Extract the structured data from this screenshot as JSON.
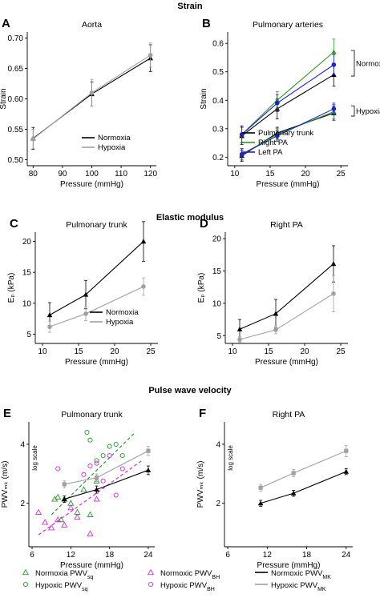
{
  "sections": {
    "strain": "Strain",
    "elastic": "Elastic modulus",
    "pwv": "Pulse wave velocity"
  },
  "colors": {
    "normoxia": "#000000",
    "hypoxia": "#a0a0a0",
    "right_pa": "#2a9a2a",
    "left_pa": "#2020d0",
    "magenta": "#d030d0",
    "green": "#2a9a2a"
  },
  "chart_data": [
    {
      "id": "A",
      "type": "line",
      "letter": "A",
      "title": "Aorta",
      "xlabel": "Pressure (mmHg)",
      "ylabel": "Strain",
      "xlim": [
        78,
        122
      ],
      "ylim": [
        0.49,
        0.71
      ],
      "xticks": [
        80,
        90,
        100,
        110,
        120
      ],
      "yticks": [
        0.5,
        0.55,
        0.6,
        0.65,
        0.7
      ],
      "yticklabels": [
        "0.50",
        "0.55",
        "0.60",
        "0.65",
        "0.70"
      ],
      "legend": [
        "Normoxia",
        "Hypoxia"
      ],
      "series": [
        {
          "name": "Normoxia",
          "color": "#000000",
          "marker": "triangle",
          "x": [
            80,
            100,
            120
          ],
          "y": [
            0.535,
            0.608,
            0.667
          ],
          "err": [
            0.018,
            0.02,
            0.022
          ]
        },
        {
          "name": "Hypoxia",
          "color": "#a0a0a0",
          "marker": "circle",
          "x": [
            80,
            100,
            120
          ],
          "y": [
            0.534,
            0.61,
            0.672
          ],
          "err": [
            0.016,
            0.022,
            0.02
          ]
        }
      ]
    },
    {
      "id": "B",
      "type": "line",
      "letter": "B",
      "title": "Pulmonary arteries",
      "xlabel": "Pressure (mmHg)",
      "ylabel": "Strain",
      "xlim": [
        9,
        26
      ],
      "ylim": [
        0.17,
        0.64
      ],
      "xticks": [
        10,
        15,
        20,
        25
      ],
      "yticks": [
        0.2,
        0.3,
        0.4,
        0.5,
        0.6
      ],
      "yticklabels": [
        "0.2",
        "0.3",
        "0.4",
        "0.5",
        "0.6"
      ],
      "legend": [
        "Pulmonary trunk",
        "Right PA",
        "Left PA"
      ],
      "annotations": [
        "Normoxia",
        "Hypoxia"
      ],
      "series": [
        {
          "name": "Pulmonary trunk",
          "color": "#000000",
          "marker": "triangle",
          "x": [
            11,
            16,
            24
          ],
          "y": [
            0.275,
            0.37,
            0.49
          ],
          "err": [
            0.03,
            0.035,
            0.04
          ]
        },
        {
          "name": "Right PA",
          "color": "#2a9a2a",
          "marker": "triangle",
          "x": [
            11,
            16,
            24
          ],
          "y": [
            0.28,
            0.4,
            0.57
          ],
          "err": [
            0.03,
            0.03,
            0.045
          ]
        },
        {
          "name": "Left PA",
          "color": "#2020d0",
          "marker": "circle",
          "x": [
            11,
            16,
            24
          ],
          "y": [
            0.28,
            0.39,
            0.525
          ],
          "err": [
            0.03,
            0.03,
            0.035
          ]
        },
        {
          "name": "Pulmonary trunk hypoxia",
          "color": "#000000",
          "marker": "triangle",
          "x": [
            11,
            16,
            24
          ],
          "y": [
            0.205,
            0.285,
            0.355
          ],
          "err": [
            0.02,
            0.02,
            0.025
          ]
        },
        {
          "name": "Right PA hypoxia",
          "color": "#2a9a2a",
          "marker": "triangle",
          "x": [
            11,
            16,
            24
          ],
          "y": [
            0.21,
            0.28,
            0.36
          ],
          "err": [
            0.02,
            0.02,
            0.025
          ]
        },
        {
          "name": "Left PA hypoxia",
          "color": "#2020d0",
          "marker": "circle",
          "x": [
            11,
            16,
            24
          ],
          "y": [
            0.21,
            0.275,
            0.37
          ],
          "err": [
            0.02,
            0.02,
            0.02
          ]
        }
      ]
    },
    {
      "id": "C",
      "type": "line",
      "letter": "C",
      "title": "Pulmonary trunk",
      "xlabel": "Pressure (mmHg)",
      "ylabel": "Eₚ (kPa)",
      "xlim": [
        9,
        26
      ],
      "ylim": [
        3.5,
        21.5
      ],
      "xticks": [
        10,
        15,
        20,
        25
      ],
      "yticks": [
        5,
        10,
        15,
        20
      ],
      "yticklabels": [
        "5",
        "10",
        "15",
        "20"
      ],
      "legend": [
        "Normoxia",
        "Hypoxia"
      ],
      "series": [
        {
          "name": "Normoxia",
          "color": "#000000",
          "marker": "triangle",
          "x": [
            11,
            16,
            24
          ],
          "y": [
            8.1,
            11.4,
            20.0
          ],
          "err": [
            2.0,
            2.3,
            3.2
          ]
        },
        {
          "name": "Hypoxia",
          "color": "#a0a0a0",
          "marker": "circle",
          "x": [
            11,
            16,
            24
          ],
          "y": [
            6.2,
            8.3,
            12.7
          ],
          "err": [
            0.9,
            1.1,
            1.4
          ]
        }
      ]
    },
    {
      "id": "D",
      "type": "line",
      "letter": "D",
      "title": "Right PA",
      "xlabel": "Pressure (mmHg)",
      "ylabel": "Eₚ (kPa)",
      "xlim": [
        9,
        26
      ],
      "ylim": [
        3.8,
        21.0
      ],
      "xticks": [
        10,
        15,
        20,
        25
      ],
      "yticks": [
        5,
        10,
        15,
        20
      ],
      "yticklabels": [
        "5",
        "10",
        "15",
        "20"
      ],
      "series": [
        {
          "name": "Normoxia",
          "color": "#000000",
          "marker": "triangle",
          "x": [
            11,
            16,
            24
          ],
          "y": [
            6.0,
            8.4,
            16.1
          ],
          "err": [
            1.5,
            2.2,
            2.8
          ]
        },
        {
          "name": "Hypoxia",
          "color": "#a0a0a0",
          "marker": "circle",
          "x": [
            11,
            16,
            24
          ],
          "y": [
            4.4,
            5.9,
            11.5
          ],
          "err": [
            0.4,
            0.6,
            2.8
          ]
        }
      ]
    },
    {
      "id": "E",
      "type": "scatter",
      "letter": "E",
      "title": "Pulmonary trunk",
      "xlabel": "Pressure (mmHg)",
      "ylabel": "PWVₘₖ (m/s)",
      "scale_note": "log scale",
      "xlim": [
        5.5,
        25
      ],
      "ylim": [
        1.2,
        5.2
      ],
      "xticks": [
        6,
        12,
        18,
        24
      ],
      "yticks": [
        2,
        4
      ],
      "yticklabels": [
        "2",
        "4"
      ],
      "series": [
        {
          "name": "Normoxia PWVsq",
          "color": "#2a9a2a",
          "marker": "open-triangle",
          "x": [
            9.5,
            10,
            10.5,
            11,
            12,
            13,
            14,
            15,
            16
          ],
          "y": [
            2.1,
            2.15,
            1.65,
            2.1,
            2.0,
            1.8,
            2.35,
            1.75,
            2.6
          ]
        },
        {
          "name": "Hypoxic PWVsq",
          "color": "#2a9a2a",
          "marker": "open-circle",
          "x": [
            14.5,
            15,
            16,
            17,
            18,
            19,
            20
          ],
          "y": [
            4.6,
            4.2,
            3.3,
            3.5,
            3.9,
            4.0,
            3.5
          ]
        },
        {
          "name": "Normoxic PWVBH",
          "color": "#d030d0",
          "marker": "open-triangle",
          "x": [
            7,
            8,
            9,
            10,
            11,
            12,
            13,
            15,
            16
          ],
          "y": [
            1.8,
            1.6,
            1.5,
            1.65,
            1.55,
            1.9,
            1.7,
            1.4,
            2.1
          ]
        },
        {
          "name": "Hypoxic PWVBH",
          "color": "#d030d0",
          "marker": "open-circle",
          "x": [
            10,
            14,
            15,
            16,
            17,
            18,
            19,
            20
          ],
          "y": [
            3.0,
            2.8,
            3.1,
            3.2,
            2.6,
            3.5,
            2.2,
            3.0
          ]
        },
        {
          "name": "Normoxic PWVMK",
          "color": "#000000",
          "marker": "triangle",
          "x": [
            11,
            16,
            24
          ],
          "y": [
            2.1,
            2.35,
            2.95
          ],
          "err": [
            0.08,
            0.1,
            0.15
          ]
        },
        {
          "name": "Hypoxic PWVMK",
          "color": "#a0a0a0",
          "marker": "square",
          "x": [
            11,
            16,
            24
          ],
          "y": [
            2.5,
            2.7,
            3.7
          ],
          "err": [
            0.1,
            0.12,
            0.2
          ]
        }
      ],
      "fits": [
        {
          "color": "#2a9a2a",
          "x": [
            9,
            22
          ],
          "y": [
            1.75,
            4.6
          ]
        },
        {
          "color": "#d030d0",
          "x": [
            7,
            23
          ],
          "y": [
            1.38,
            3.3
          ]
        }
      ]
    },
    {
      "id": "F",
      "type": "line",
      "letter": "F",
      "title": "Right PA",
      "xlabel": "Pressure (mmHg)",
      "ylabel": "PWVₘₖ (m/s)",
      "scale_note": "log scale",
      "xlim": [
        5.5,
        25
      ],
      "ylim": [
        1.2,
        5.2
      ],
      "xticks": [
        6,
        12,
        18,
        24
      ],
      "yticks": [
        2,
        4
      ],
      "yticklabels": [
        "2",
        "4"
      ],
      "series": [
        {
          "name": "Normoxic PWVMK",
          "color": "#000000",
          "marker": "triangle",
          "x": [
            11,
            16,
            24
          ],
          "y": [
            2.0,
            2.25,
            2.9
          ],
          "err": [
            0.07,
            0.08,
            0.1
          ]
        },
        {
          "name": "Hypoxic PWVMK",
          "color": "#a0a0a0",
          "marker": "square",
          "x": [
            11,
            16,
            24
          ],
          "y": [
            2.4,
            2.85,
            3.7
          ],
          "err": [
            0.1,
            0.12,
            0.25
          ]
        }
      ]
    }
  ],
  "bottom_legend": [
    {
      "label": "Normoxia PWV",
      "sub": "sq",
      "color": "#2a9a2a",
      "marker": "open-triangle"
    },
    {
      "label": "Hypoxic PWV",
      "sub": "sq",
      "color": "#2a9a2a",
      "marker": "open-circle"
    },
    {
      "label": "Normoxic PWV",
      "sub": "BH",
      "color": "#d030d0",
      "marker": "open-triangle"
    },
    {
      "label": "Hypoxic PWV",
      "sub": "BH",
      "color": "#d030d0",
      "marker": "open-circle"
    },
    {
      "label": "Normoxic PWV",
      "sub": "MK",
      "color": "#000000",
      "marker": "line"
    },
    {
      "label": "Hypoxic PWV",
      "sub": "MK",
      "color": "#a0a0a0",
      "marker": "line"
    }
  ]
}
